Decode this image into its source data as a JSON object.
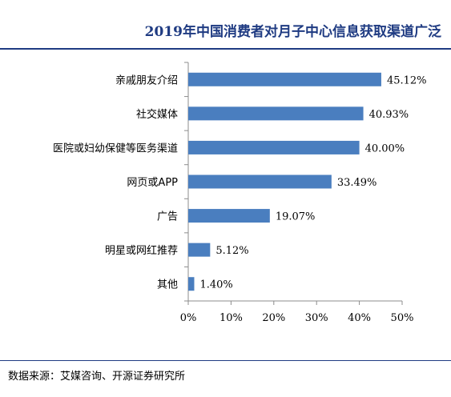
{
  "header": {
    "title": "2019年中国消费者对月子中心信息获取渠道广泛"
  },
  "footer": {
    "source_label": "数据来源：",
    "source_text": "艾媒咨询、开源证券研究所"
  },
  "colors": {
    "title": "#1f3b82",
    "bar": "#4a7ebf",
    "rule": "#1f3b82"
  },
  "chart_data": {
    "type": "bar",
    "orientation": "horizontal",
    "categories": [
      "亲戚朋友介绍",
      "社交媒体",
      "医院或妇幼保健等医务渠道",
      "网页或APP",
      "广告",
      "明星或网红推荐",
      "其他"
    ],
    "values": [
      45.12,
      40.93,
      40.0,
      33.49,
      19.07,
      5.12,
      1.4
    ],
    "value_labels": [
      "45.12%",
      "40.93%",
      "40.00%",
      "33.49%",
      "19.07%",
      "5.12%",
      "1.40%"
    ],
    "x_ticks": [
      "0%",
      "10%",
      "20%",
      "30%",
      "40%",
      "50%"
    ],
    "xlim": [
      0,
      50
    ],
    "xlabel": "",
    "ylabel": "",
    "grid": false,
    "legend": "none"
  }
}
